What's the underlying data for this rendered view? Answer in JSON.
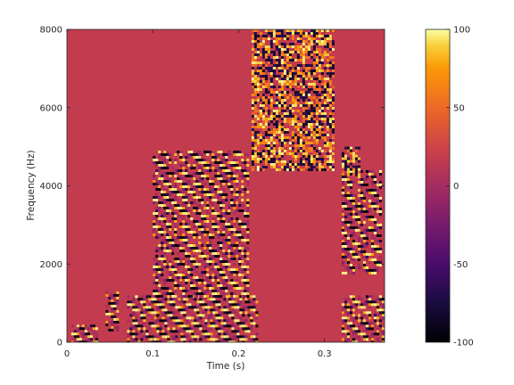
{
  "chart_data": {
    "type": "heatmap",
    "title": "",
    "xlabel": "Time (s)",
    "ylabel": "Frequency (Hz)",
    "xlim": [
      0,
      0.37
    ],
    "ylim": [
      0,
      8000
    ],
    "x_ticks": [
      0,
      0.1,
      0.2,
      0.3
    ],
    "x_tick_labels": [
      "0",
      "0.1",
      "0.2",
      "0.3"
    ],
    "y_ticks": [
      0,
      2000,
      4000,
      6000,
      8000
    ],
    "y_tick_labels": [
      "0",
      "2000",
      "4000",
      "6000",
      "8000"
    ],
    "colorbar": {
      "colormap": "inferno",
      "range": [
        -100,
        100
      ],
      "ticks": [
        -100,
        -50,
        0,
        50,
        100
      ],
      "tick_labels": [
        "-100",
        "-50",
        "0",
        "50",
        "100"
      ]
    },
    "background_value": 0,
    "regions": [
      {
        "kind": "harmonic-band",
        "t_start": 0.005,
        "t_end": 0.035,
        "f_low": 0,
        "f_high": 450
      },
      {
        "kind": "harmonic-band",
        "t_start": 0.045,
        "t_end": 0.06,
        "f_low": 300,
        "f_high": 1300
      },
      {
        "kind": "harmonic-band",
        "t_start": 0.07,
        "t_end": 0.22,
        "f_low": 0,
        "f_high": 1200
      },
      {
        "kind": "harmonic-band",
        "t_start": 0.1,
        "t_end": 0.21,
        "f_low": 1200,
        "f_high": 4900
      },
      {
        "kind": "noise-burst",
        "t_start": 0.215,
        "t_end": 0.31,
        "f_low": 4400,
        "f_high": 8000
      },
      {
        "kind": "harmonic-band",
        "t_start": 0.32,
        "t_end": 0.37,
        "f_low": 0,
        "f_high": 1200
      },
      {
        "kind": "harmonic-band",
        "t_start": 0.32,
        "t_end": 0.365,
        "f_low": 1800,
        "f_high": 4400
      },
      {
        "kind": "noise-burst",
        "t_start": 0.32,
        "t_end": 0.34,
        "f_low": 4300,
        "f_high": 5000
      }
    ],
    "colors": {
      "background": "#c23b4e",
      "frame": "#262626"
    }
  }
}
